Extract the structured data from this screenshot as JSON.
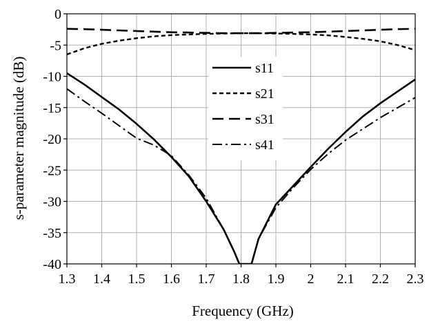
{
  "chart_data": {
    "type": "line",
    "xlabel": "Frequency (GHz)",
    "ylabel": "s-parameter magnitude (dB)",
    "xlim": [
      1.3,
      2.3
    ],
    "ylim": [
      -40,
      0
    ],
    "xticks": [
      "1.3",
      "1.4",
      "1.5",
      "1.6",
      "1.7",
      "1.8",
      "1.9",
      "2",
      "2.1",
      "2.2",
      "2.3"
    ],
    "yticks": [
      "0",
      "-5",
      "-10",
      "-15",
      "-20",
      "-25",
      "-30",
      "-35",
      "-40"
    ],
    "grid": true,
    "legend_position": "center",
    "series": [
      {
        "name": "s11",
        "style": "solid",
        "x": [
          1.3,
          1.35,
          1.4,
          1.45,
          1.5,
          1.55,
          1.6,
          1.65,
          1.7,
          1.75,
          1.78,
          1.795,
          1.83,
          1.85,
          1.9,
          1.95,
          2.0,
          2.05,
          2.1,
          2.15,
          2.2,
          2.25,
          2.3
        ],
        "y": [
          -9.5,
          -11.3,
          -13.3,
          -15.3,
          -17.6,
          -20.1,
          -22.9,
          -26.0,
          -30.0,
          -34.5,
          -38.0,
          -40.0,
          -40.0,
          -36.0,
          -30.5,
          -27.5,
          -24.5,
          -21.6,
          -18.9,
          -16.4,
          -14.3,
          -12.4,
          -10.5
        ]
      },
      {
        "name": "s21",
        "style": "short-dash",
        "x": [
          1.3,
          1.35,
          1.4,
          1.45,
          1.5,
          1.55,
          1.6,
          1.65,
          1.7,
          1.75,
          1.8,
          1.85,
          1.9,
          1.95,
          2.0,
          2.05,
          2.1,
          2.15,
          2.2,
          2.25,
          2.3
        ],
        "y": [
          -6.5,
          -5.5,
          -4.8,
          -4.3,
          -3.9,
          -3.6,
          -3.4,
          -3.3,
          -3.2,
          -3.15,
          -3.1,
          -3.1,
          -3.15,
          -3.2,
          -3.3,
          -3.45,
          -3.7,
          -4.0,
          -4.4,
          -5.0,
          -5.8
        ]
      },
      {
        "name": "s31",
        "style": "long-dash",
        "x": [
          1.3,
          1.35,
          1.4,
          1.45,
          1.5,
          1.55,
          1.6,
          1.65,
          1.7,
          1.75,
          1.8,
          1.85,
          1.9,
          1.95,
          2.0,
          2.05,
          2.1,
          2.15,
          2.2,
          2.25,
          2.3
        ],
        "y": [
          -2.4,
          -2.45,
          -2.55,
          -2.65,
          -2.75,
          -2.85,
          -2.95,
          -3.0,
          -3.05,
          -3.1,
          -3.1,
          -3.1,
          -3.05,
          -3.0,
          -2.95,
          -2.85,
          -2.75,
          -2.65,
          -2.55,
          -2.45,
          -2.4
        ]
      },
      {
        "name": "s41",
        "style": "dash-dot",
        "x": [
          1.3,
          1.35,
          1.4,
          1.45,
          1.5,
          1.55,
          1.6,
          1.65,
          1.7,
          1.75,
          1.78,
          1.795,
          1.83,
          1.85,
          1.9,
          1.95,
          2.0,
          2.05,
          2.1,
          2.15,
          2.2,
          2.25,
          2.3
        ],
        "y": [
          -12.0,
          -14.0,
          -15.9,
          -17.9,
          -19.9,
          -21.0,
          -22.7,
          -25.8,
          -29.5,
          -34.5,
          -38.0,
          -40.0,
          -40.0,
          -36.0,
          -31.0,
          -27.8,
          -24.9,
          -22.4,
          -20.2,
          -18.4,
          -16.6,
          -15.0,
          -13.4
        ]
      }
    ]
  }
}
